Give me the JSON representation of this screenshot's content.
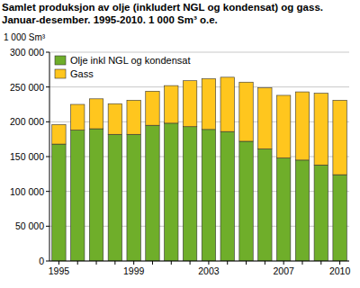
{
  "chart_data": {
    "type": "bar",
    "stacked": true,
    "title": "Samlet produksjon av olje (inkludert NGL og kondensat) og gass.",
    "subtitle": "Januar-desember. 1995-2010.  1 000 Sm³ o.e.",
    "y_label": "1 000 Sm³",
    "categories": [
      "1995",
      null,
      null,
      null,
      "1999",
      null,
      null,
      null,
      "2003",
      null,
      null,
      null,
      "2007",
      null,
      null,
      "2010"
    ],
    "series": [
      {
        "name": "Olje inkl NGL og kondensat",
        "color": "#6fae2a",
        "values": [
          168000,
          188000,
          190000,
          182000,
          182000,
          195000,
          198000,
          193000,
          189000,
          186000,
          172000,
          161000,
          148000,
          145000,
          138000,
          124000
        ]
      },
      {
        "name": "Gass",
        "color": "#ffc61e",
        "values": [
          28000,
          37000,
          43000,
          44000,
          49000,
          49000,
          54000,
          66000,
          73000,
          78000,
          85000,
          88000,
          90000,
          98000,
          103000,
          107000
        ]
      }
    ],
    "ylim": [
      0,
      300000
    ],
    "yticks": [
      0,
      {
        "value": 50000,
        "label": "50 000"
      },
      {
        "value": 100000,
        "label": "100 000"
      },
      {
        "value": 150000,
        "label": "150 000"
      },
      {
        "value": 200000,
        "label": "200 000"
      },
      {
        "value": 250000,
        "label": "250 000"
      },
      {
        "value": 300000,
        "label": "300 000"
      }
    ],
    "grid": true,
    "legend": "upper left"
  }
}
